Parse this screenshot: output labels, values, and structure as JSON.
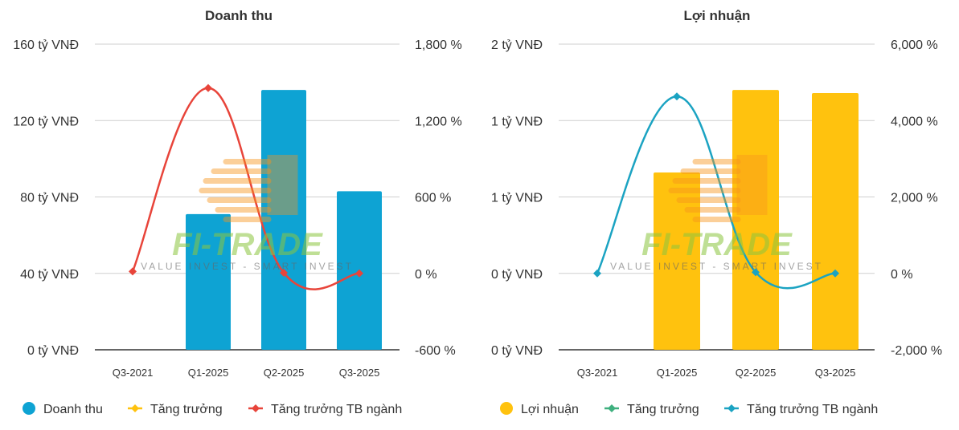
{
  "chart_data": [
    {
      "type": "bar",
      "title": "Doanh thu",
      "categories": [
        "Q3-2021",
        "Q1-2025",
        "Q2-2025",
        "Q3-2025"
      ],
      "left_axis": {
        "ticks": [
          "160 tỷ VNĐ",
          "120 tỷ VNĐ",
          "80 tỷ VNĐ",
          "40 tỷ VNĐ",
          "0 tỷ VNĐ"
        ],
        "range": [
          0,
          160
        ],
        "unit": "tỷ VNĐ"
      },
      "right_axis": {
        "ticks": [
          "1,800 %",
          "1,200 %",
          "600 %",
          "0 %",
          "-600 %"
        ],
        "range": [
          -600,
          1800
        ],
        "unit": "%"
      },
      "series": [
        {
          "name": "Doanh thu",
          "kind": "bar",
          "axis": "left",
          "color": "#0ea3d3",
          "values": [
            null,
            71,
            136,
            83
          ]
        },
        {
          "name": "Tăng trưởng",
          "kind": "line",
          "axis": "right",
          "color": "#ffc20e",
          "values": [
            null,
            null,
            null,
            null
          ]
        },
        {
          "name": "Tăng trưởng TB ngành",
          "kind": "line",
          "axis": "right",
          "color": "#e8443a",
          "values": [
            15,
            1455,
            5,
            0
          ]
        }
      ]
    },
    {
      "type": "bar",
      "title": "Lợi nhuận",
      "categories": [
        "Q3-2021",
        "Q1-2025",
        "Q2-2025",
        "Q3-2025"
      ],
      "left_axis": {
        "ticks": [
          "2 tỷ VNĐ",
          "1 tỷ VNĐ",
          "1 tỷ VNĐ",
          "0 tỷ VNĐ",
          "0 tỷ VNĐ"
        ],
        "range": [
          0,
          2
        ],
        "unit": "tỷ VNĐ"
      },
      "right_axis": {
        "ticks": [
          "6,000 %",
          "4,000 %",
          "2,000 %",
          "0 %",
          "-2,000 %"
        ],
        "range": [
          -2000,
          6000
        ],
        "unit": "%"
      },
      "series": [
        {
          "name": "Lợi nhuận",
          "kind": "bar",
          "axis": "left",
          "color": "#ffc20e",
          "values": [
            null,
            1.16,
            1.7,
            1.68
          ]
        },
        {
          "name": "Tăng trưởng",
          "kind": "line",
          "axis": "right",
          "color": "#3fb07f",
          "values": [
            null,
            null,
            null,
            null
          ]
        },
        {
          "name": "Tăng trưởng TB ngành",
          "kind": "line",
          "axis": "right",
          "color": "#1ba3c2",
          "values": [
            0,
            4630,
            30,
            0
          ]
        }
      ]
    }
  ],
  "watermark": {
    "brand": "FI-TRADE",
    "tagline": "VALUE INVEST - SMART INVEST"
  }
}
